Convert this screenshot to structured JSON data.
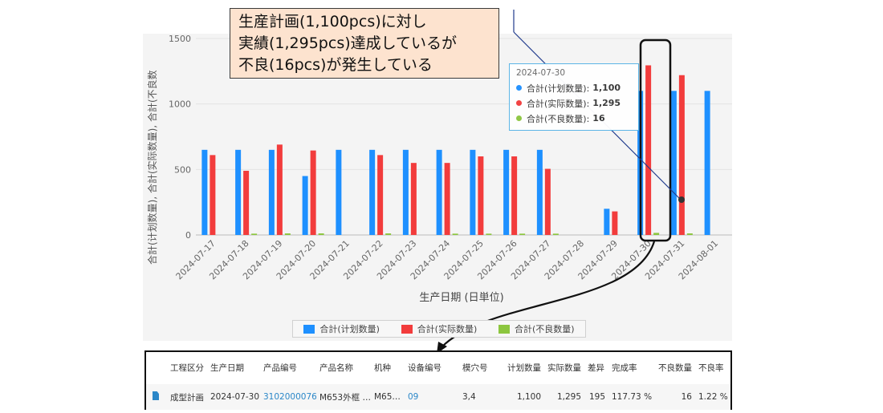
{
  "callout": {
    "line1": "生産計画(1,100pcs)に対し",
    "line2": "実績(1,295pcs)達成しているが",
    "line3": "不良(16pcs)が発生している"
  },
  "tooltip": {
    "date": "2024-07-30",
    "rows": [
      {
        "label": "合計(计划数量):",
        "value": "1,100",
        "color": "#1e90ff"
      },
      {
        "label": "合計(实际数量):",
        "value": "1,295",
        "color": "#f23c3c"
      },
      {
        "label": "合計(不良数量):",
        "value": "16",
        "color": "#8cc63f"
      }
    ]
  },
  "chart_data": {
    "type": "bar",
    "categories": [
      "2024-07-17",
      "2024-07-18",
      "2024-07-19",
      "2024-07-20",
      "2024-07-21",
      "2024-07-22",
      "2024-07-23",
      "2024-07-24",
      "2024-07-25",
      "2024-07-26",
      "2024-07-27",
      "2024-07-28",
      "2024-07-29",
      "2024-07-30",
      "2024-07-31",
      "2024-08-01"
    ],
    "series": [
      {
        "name": "合計(计划数量)",
        "color": "#1e90ff",
        "values": [
          650,
          650,
          650,
          450,
          650,
          650,
          650,
          650,
          650,
          650,
          650,
          0,
          200,
          1100,
          1100,
          1100
        ]
      },
      {
        "name": "合計(实际数量)",
        "color": "#f23c3c",
        "values": [
          610,
          490,
          690,
          645,
          0,
          610,
          550,
          550,
          600,
          600,
          505,
          0,
          180,
          1295,
          1220,
          0
        ]
      },
      {
        "name": "合計(不良数量)",
        "color": "#8cc63f",
        "values": [
          0,
          10,
          12,
          12,
          0,
          12,
          0,
          10,
          10,
          10,
          10,
          0,
          0,
          16,
          12,
          0
        ]
      }
    ],
    "ylim": [
      0,
      1500
    ],
    "yticks": [
      0,
      500,
      1000,
      1500
    ],
    "xlabel": "生产日期 (日単位)",
    "ylabel": "合計(计划数量), 合計(实际数量), 合計(不良数",
    "legend": "bottom",
    "grid": true
  },
  "table": {
    "headers": [
      "工程区分",
      "生产日期",
      "产品编号",
      "产品名称",
      "机种",
      "设备编号",
      "模穴号",
      "计划数量",
      "实际数量",
      "差异",
      "完成率",
      "不良数量",
      "不良率"
    ],
    "row": [
      "成型計画",
      "2024-07-30",
      "3102000076",
      "M653外框 …",
      "M65…",
      "09",
      "3,4",
      "1,100",
      "1,295",
      "195",
      "117.73 %",
      "16",
      "1.22 %"
    ]
  }
}
